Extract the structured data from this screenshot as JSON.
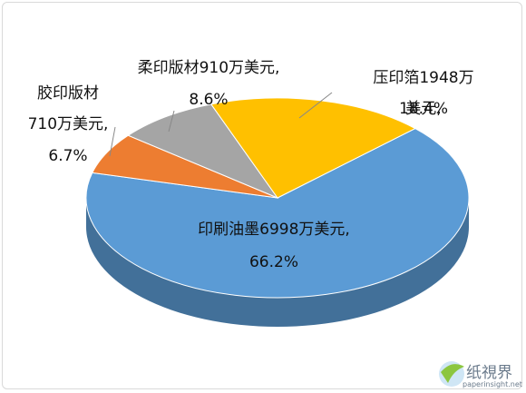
{
  "chart_data": {
    "type": "pie",
    "categories": [
      "印刷油墨6998万美元,",
      "胶印版材\n710万美元,",
      "柔印版材910万美元,",
      "压印箔1948万美元,"
    ],
    "values": [
      66.2,
      6.7,
      8.6,
      18.4
    ],
    "value_labels": [
      "66.2%",
      "6.7%",
      "8.6%",
      "18.4%"
    ],
    "colors": [
      "#5b9bd5",
      "#ed7d31",
      "#a5a5a5",
      "#ffc000"
    ],
    "annotations": [
      "纸視界",
      "paperinsight.net"
    ]
  }
}
